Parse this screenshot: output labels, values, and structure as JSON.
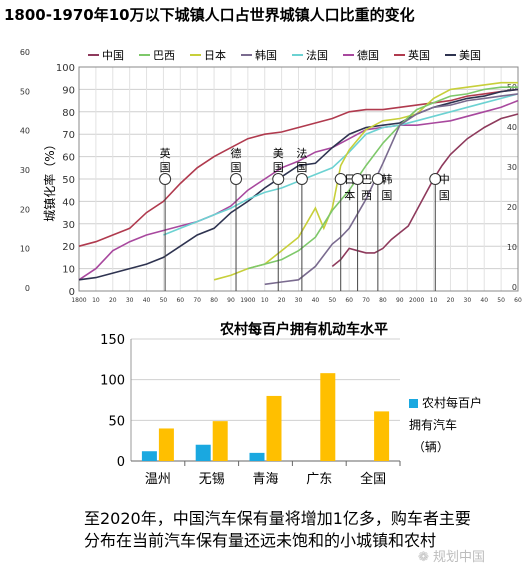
{
  "page": {
    "title": "1800-1970年10万以下城镇人口占世界城镇人口比重的变化",
    "caption": "至2020年，中国汽车保有量将增加1亿多，购车者主要分布在当前汽车保有量还远未饱和的小城镇和农村",
    "watermark": "规划中国"
  },
  "chart_data": [
    {
      "type": "line",
      "title": "",
      "ylabel": "城镇化率（%）",
      "xlim": [
        1800,
        2060
      ],
      "ylim": [
        0,
        100
      ],
      "left_axis_ticks": [
        "60",
        "50",
        "40",
        "30",
        "20",
        "10",
        "0"
      ],
      "right_axis_ticks": [
        "50",
        "40",
        "30",
        "20",
        "10",
        "0"
      ],
      "y_ticks": [
        "100",
        "90",
        "80",
        "70",
        "60",
        "50",
        "40",
        "30",
        "20",
        "10",
        "0"
      ],
      "x_ticks": [
        "1800",
        "10",
        "20",
        "30",
        "40",
        "50",
        "60",
        "70",
        "80",
        "90",
        "1900",
        "10",
        "20",
        "30",
        "40",
        "50",
        "60",
        "70",
        "80",
        "90",
        "2000",
        "10",
        "20",
        "30",
        "40",
        "50",
        "60"
      ],
      "legend": [
        {
          "name": "中国",
          "color": "#8e3a5c"
        },
        {
          "name": "巴西",
          "color": "#7ec86a"
        },
        {
          "name": "日本",
          "color": "#c7cf3a"
        },
        {
          "name": "韩国",
          "color": "#7a6b8f"
        },
        {
          "name": "法国",
          "color": "#6cd2d2"
        },
        {
          "name": "德国",
          "color": "#a8489e"
        },
        {
          "name": "英国",
          "color": "#b03a4e"
        },
        {
          "name": "美国",
          "color": "#2e3350"
        }
      ],
      "series": [
        {
          "name": "英国",
          "color": "#b03a4e",
          "points": [
            [
              1800,
              20
            ],
            [
              1810,
              22
            ],
            [
              1820,
              25
            ],
            [
              1830,
              28
            ],
            [
              1840,
              35
            ],
            [
              1850,
              40
            ],
            [
              1860,
              48
            ],
            [
              1870,
              55
            ],
            [
              1880,
              60
            ],
            [
              1890,
              64
            ],
            [
              1900,
              68
            ],
            [
              1910,
              70
            ],
            [
              1920,
              71
            ],
            [
              1930,
              73
            ],
            [
              1940,
              75
            ],
            [
              1950,
              77
            ],
            [
              1960,
              80
            ],
            [
              1970,
              81
            ],
            [
              1980,
              81
            ],
            [
              1990,
              82
            ],
            [
              2000,
              83
            ],
            [
              2010,
              84
            ],
            [
              2020,
              85
            ],
            [
              2030,
              87
            ],
            [
              2040,
              88
            ],
            [
              2050,
              89
            ],
            [
              2060,
              90
            ]
          ]
        },
        {
          "name": "德国",
          "color": "#a8489e",
          "points": [
            [
              1800,
              5
            ],
            [
              1810,
              10
            ],
            [
              1820,
              18
            ],
            [
              1830,
              22
            ],
            [
              1840,
              25
            ],
            [
              1850,
              27
            ],
            [
              1860,
              29
            ],
            [
              1870,
              31
            ],
            [
              1880,
              34
            ],
            [
              1890,
              38
            ],
            [
              1900,
              45
            ],
            [
              1910,
              50
            ],
            [
              1920,
              55
            ],
            [
              1930,
              58
            ],
            [
              1940,
              62
            ],
            [
              1950,
              64
            ],
            [
              1960,
              68
            ],
            [
              1970,
              72
            ],
            [
              1980,
              73
            ],
            [
              1990,
              74
            ],
            [
              2000,
              74
            ],
            [
              2010,
              75
            ],
            [
              2020,
              76
            ],
            [
              2030,
              78
            ],
            [
              2040,
              80
            ],
            [
              2050,
              82
            ],
            [
              2060,
              85
            ]
          ]
        },
        {
          "name": "美国",
          "color": "#2e3350",
          "points": [
            [
              1800,
              5
            ],
            [
              1810,
              6
            ],
            [
              1820,
              8
            ],
            [
              1830,
              10
            ],
            [
              1840,
              12
            ],
            [
              1850,
              15
            ],
            [
              1860,
              20
            ],
            [
              1870,
              25
            ],
            [
              1880,
              28
            ],
            [
              1890,
              35
            ],
            [
              1900,
              40
            ],
            [
              1910,
              46
            ],
            [
              1920,
              51
            ],
            [
              1930,
              56
            ],
            [
              1940,
              57
            ],
            [
              1950,
              64
            ],
            [
              1960,
              70
            ],
            [
              1970,
              73
            ],
            [
              1980,
              74
            ],
            [
              1990,
              75
            ],
            [
              2000,
              79
            ],
            [
              2010,
              82
            ],
            [
              2020,
              84
            ],
            [
              2030,
              86
            ],
            [
              2040,
              87
            ],
            [
              2050,
              89
            ],
            [
              2060,
              90
            ]
          ]
        },
        {
          "name": "法国",
          "color": "#6cd2d2",
          "points": [
            [
              1850,
              25
            ],
            [
              1860,
              28
            ],
            [
              1870,
              31
            ],
            [
              1880,
              34
            ],
            [
              1890,
              37
            ],
            [
              1900,
              41
            ],
            [
              1910,
              44
            ],
            [
              1920,
              46
            ],
            [
              1930,
              49
            ],
            [
              1940,
              52
            ],
            [
              1950,
              55
            ],
            [
              1960,
              62
            ],
            [
              1970,
              70
            ],
            [
              1980,
              73
            ],
            [
              1990,
              74
            ],
            [
              2000,
              76
            ],
            [
              2010,
              78
            ],
            [
              2020,
              80
            ],
            [
              2030,
              82
            ],
            [
              2040,
              84
            ],
            [
              2050,
              86
            ],
            [
              2060,
              88
            ]
          ]
        },
        {
          "name": "日本",
          "color": "#c7cf3a",
          "points": [
            [
              1880,
              5
            ],
            [
              1890,
              7
            ],
            [
              1900,
              10
            ],
            [
              1910,
              12
            ],
            [
              1920,
              18
            ],
            [
              1930,
              24
            ],
            [
              1940,
              37
            ],
            [
              1945,
              28
            ],
            [
              1950,
              37
            ],
            [
              1955,
              56
            ],
            [
              1960,
              63
            ],
            [
              1970,
              72
            ],
            [
              1980,
              76
            ],
            [
              1990,
              77
            ],
            [
              2000,
              79
            ],
            [
              2010,
              86
            ],
            [
              2020,
              90
            ],
            [
              2030,
              91
            ],
            [
              2040,
              92
            ],
            [
              2050,
              93
            ],
            [
              2060,
              93
            ]
          ]
        },
        {
          "name": "巴西",
          "color": "#7ec86a",
          "points": [
            [
              1900,
              10
            ],
            [
              1910,
              12
            ],
            [
              1920,
              14
            ],
            [
              1930,
              18
            ],
            [
              1940,
              24
            ],
            [
              1950,
              36
            ],
            [
              1960,
              45
            ],
            [
              1970,
              56
            ],
            [
              1980,
              66
            ],
            [
              1990,
              74
            ],
            [
              2000,
              81
            ],
            [
              2010,
              84
            ],
            [
              2020,
              87
            ],
            [
              2030,
              88
            ],
            [
              2040,
              90
            ],
            [
              2050,
              91
            ],
            [
              2060,
              91
            ]
          ]
        },
        {
          "name": "韩国",
          "color": "#7a6b8f",
          "points": [
            [
              1910,
              3
            ],
            [
              1920,
              4
            ],
            [
              1930,
              5
            ],
            [
              1940,
              11
            ],
            [
              1950,
              21
            ],
            [
              1955,
              24
            ],
            [
              1960,
              28
            ],
            [
              1970,
              41
            ],
            [
              1980,
              57
            ],
            [
              1990,
              74
            ],
            [
              2000,
              79
            ],
            [
              2010,
              82
            ],
            [
              2020,
              83
            ],
            [
              2030,
              85
            ],
            [
              2040,
              86
            ],
            [
              2050,
              87
            ],
            [
              2060,
              88
            ]
          ]
        },
        {
          "name": "中国",
          "color": "#8e3a5c",
          "points": [
            [
              1950,
              11
            ],
            [
              1955,
              14
            ],
            [
              1960,
              19
            ],
            [
              1965,
              18
            ],
            [
              1970,
              17
            ],
            [
              1975,
              17
            ],
            [
              1980,
              19
            ],
            [
              1985,
              23
            ],
            [
              1990,
              26
            ],
            [
              1995,
              29
            ],
            [
              2000,
              36
            ],
            [
              2005,
              43
            ],
            [
              2010,
              50
            ],
            [
              2015,
              56
            ],
            [
              2020,
              61
            ],
            [
              2030,
              68
            ],
            [
              2040,
              73
            ],
            [
              2050,
              77
            ],
            [
              2060,
              79
            ]
          ]
        }
      ],
      "markers": [
        {
          "label": "英国",
          "year": 1851
        },
        {
          "label": "德国",
          "year": 1893
        },
        {
          "label": "美国",
          "year": 1918
        },
        {
          "label": "法国",
          "year": 1932
        },
        {
          "label": "日本",
          "year": 1955
        },
        {
          "label": "巴西",
          "year": 1965
        },
        {
          "label": "韩国",
          "year": 1977
        },
        {
          "label": "中国",
          "year": 2011
        }
      ]
    },
    {
      "type": "bar",
      "title": "农村每百户拥有机动车水平",
      "categories": [
        "温州",
        "无锡",
        "青海",
        "广东",
        "全国"
      ],
      "ylim": [
        0,
        150
      ],
      "y_ticks": [
        "150",
        "100",
        "50",
        "0"
      ],
      "series": [
        {
          "name": "农村每百户拥有汽车（辆）",
          "color": "#1aa8e0",
          "values": [
            12,
            20,
            10,
            null,
            null
          ]
        },
        {
          "name": "",
          "color": "#ffbf00",
          "values": [
            40,
            49,
            80,
            108,
            61
          ]
        }
      ],
      "legend_lines": [
        "农村每百户",
        "拥有汽车",
        "（辆）"
      ]
    }
  ]
}
